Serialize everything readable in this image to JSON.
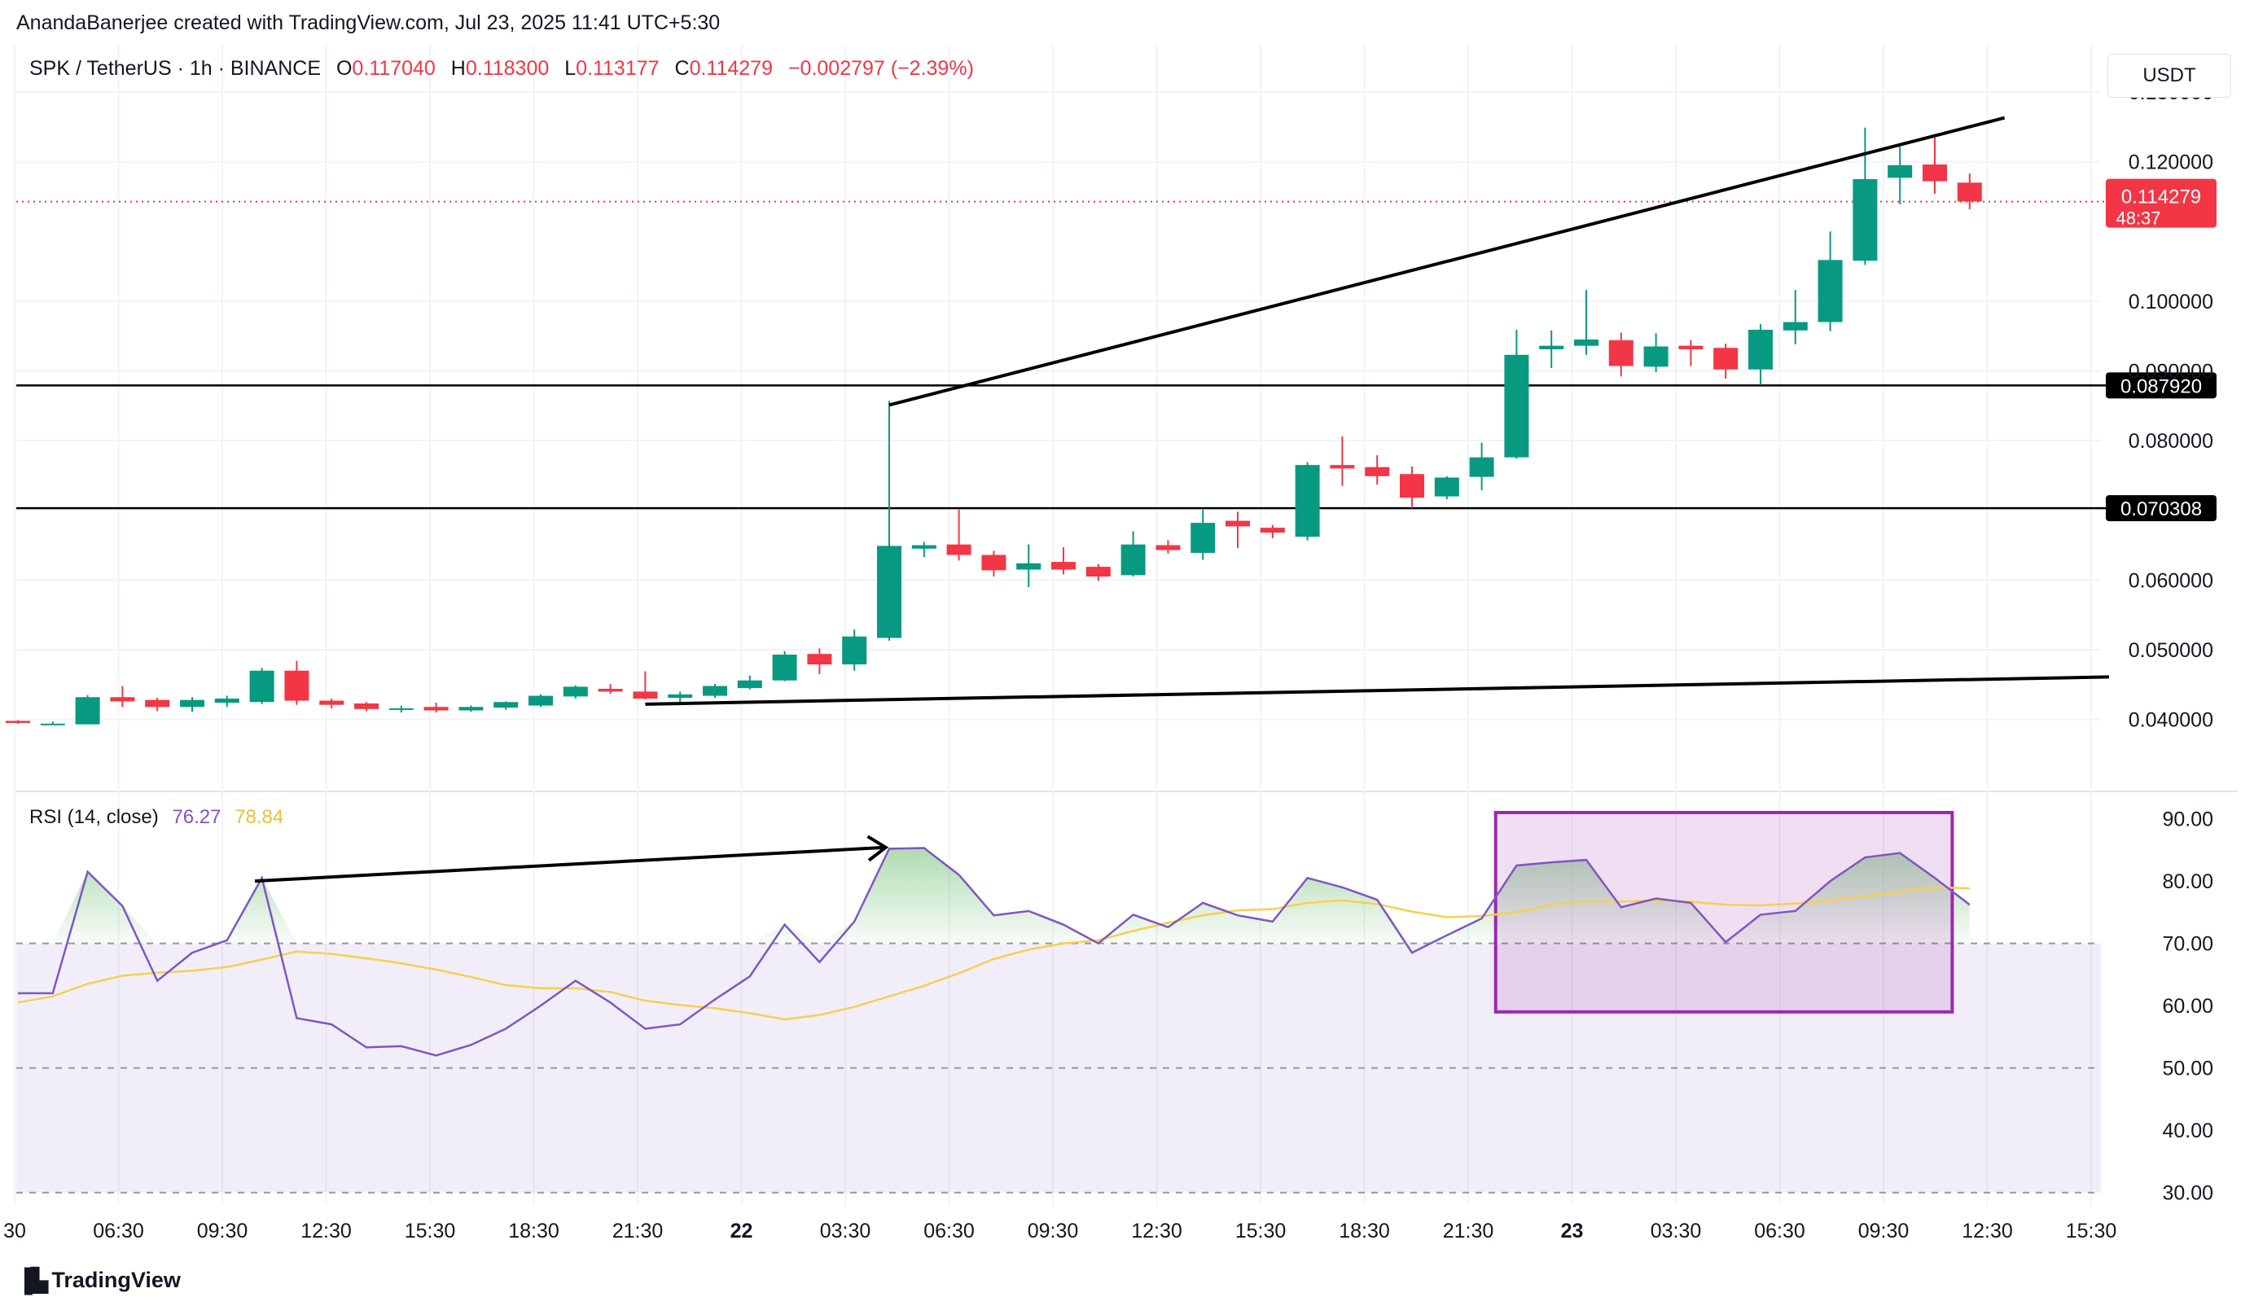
{
  "header": {
    "credit": "AnandaBanerjee created with TradingView.com, Jul 23, 2025 11:41 UTC+5:30",
    "symbol": "SPK / TetherUS · 1h · BINANCE",
    "open_label": "O",
    "open": "0.117040",
    "high_label": "H",
    "high": "0.118300",
    "low_label": "L",
    "low": "0.113177",
    "close_label": "C",
    "close": "0.114279",
    "change": "−0.002797 (−2.39%)"
  },
  "currency_button": "USDT",
  "brand": {
    "logo": "▐▙",
    "name": "TradingView"
  },
  "colors": {
    "up": "#089981",
    "down": "#f23645",
    "rsi": "#7e57c2",
    "rsi_ma": "#f7d04c",
    "box": "#9c27b0",
    "text": "#131722"
  },
  "chart_data": {
    "type": "candlestick",
    "timeframe": "1h",
    "price_axis": {
      "ylim": [
        0.0305,
        0.1321
      ],
      "ticks": [
        "0.130000",
        "0.120000",
        "0.100000",
        "0.090000",
        "0.080000",
        "0.060000",
        "0.050000",
        "0.040000"
      ]
    },
    "time_axis": {
      "labels": [
        "30",
        "06:30",
        "09:30",
        "12:30",
        "15:30",
        "18:30",
        "21:30",
        "22",
        "03:30",
        "06:30",
        "09:30",
        "12:30",
        "15:30",
        "18:30",
        "21:30",
        "23",
        "03:30",
        "06:30",
        "09:30",
        "12:30",
        "15:30"
      ]
    },
    "candles": [
      [
        0.0398,
        0.0399,
        0.0394,
        0.0395
      ],
      [
        0.0394,
        0.0397,
        0.0392,
        0.0394
      ],
      [
        0.0393,
        0.0435,
        0.0393,
        0.0432
      ],
      [
        0.0432,
        0.0448,
        0.0418,
        0.0426
      ],
      [
        0.0428,
        0.0431,
        0.0412,
        0.0418
      ],
      [
        0.0418,
        0.0432,
        0.0411,
        0.0428
      ],
      [
        0.0424,
        0.0434,
        0.0418,
        0.043
      ],
      [
        0.0425,
        0.0474,
        0.0422,
        0.047
      ],
      [
        0.047,
        0.0484,
        0.0421,
        0.0427
      ],
      [
        0.0427,
        0.043,
        0.0416,
        0.0421
      ],
      [
        0.0423,
        0.0425,
        0.0412,
        0.0415
      ],
      [
        0.0414,
        0.042,
        0.041,
        0.0416
      ],
      [
        0.0418,
        0.0424,
        0.041,
        0.0413
      ],
      [
        0.0413,
        0.042,
        0.0411,
        0.0418
      ],
      [
        0.0417,
        0.0426,
        0.0414,
        0.0425
      ],
      [
        0.042,
        0.0436,
        0.0418,
        0.0434
      ],
      [
        0.0433,
        0.0449,
        0.043,
        0.0447
      ],
      [
        0.0444,
        0.0451,
        0.0437,
        0.044
      ],
      [
        0.044,
        0.0469,
        0.0429,
        0.043
      ],
      [
        0.0431,
        0.044,
        0.0425,
        0.0436
      ],
      [
        0.0434,
        0.0451,
        0.0431,
        0.0448
      ],
      [
        0.0445,
        0.0463,
        0.0443,
        0.0456
      ],
      [
        0.0456,
        0.0498,
        0.0455,
        0.0493
      ],
      [
        0.0494,
        0.0502,
        0.0465,
        0.0479
      ],
      [
        0.0479,
        0.0529,
        0.047,
        0.0519
      ],
      [
        0.0517,
        0.0857,
        0.0513,
        0.0649
      ],
      [
        0.0645,
        0.0655,
        0.0633,
        0.065
      ],
      [
        0.0651,
        0.0701,
        0.0628,
        0.0636
      ],
      [
        0.0636,
        0.0642,
        0.0605,
        0.0614
      ],
      [
        0.0615,
        0.0651,
        0.059,
        0.0624
      ],
      [
        0.0626,
        0.0647,
        0.0608,
        0.0615
      ],
      [
        0.0619,
        0.0623,
        0.0599,
        0.0605
      ],
      [
        0.0607,
        0.067,
        0.0605,
        0.0651
      ],
      [
        0.065,
        0.0657,
        0.0638,
        0.0643
      ],
      [
        0.0639,
        0.0701,
        0.0629,
        0.0682
      ],
      [
        0.0685,
        0.0698,
        0.0646,
        0.0677
      ],
      [
        0.0675,
        0.0679,
        0.066,
        0.0668
      ],
      [
        0.0662,
        0.0769,
        0.0657,
        0.0765
      ],
      [
        0.0765,
        0.0806,
        0.0735,
        0.076
      ],
      [
        0.0762,
        0.0779,
        0.0737,
        0.0749
      ],
      [
        0.0752,
        0.0763,
        0.0703,
        0.0718
      ],
      [
        0.072,
        0.0749,
        0.0716,
        0.0747
      ],
      [
        0.0748,
        0.0797,
        0.0729,
        0.0776
      ],
      [
        0.0776,
        0.0959,
        0.0774,
        0.0923
      ],
      [
        0.0931,
        0.0958,
        0.0904,
        0.0936
      ],
      [
        0.0936,
        0.1016,
        0.0923,
        0.0945
      ],
      [
        0.0944,
        0.0955,
        0.0892,
        0.0907
      ],
      [
        0.0906,
        0.0954,
        0.0898,
        0.0935
      ],
      [
        0.0936,
        0.0944,
        0.0907,
        0.0931
      ],
      [
        0.0933,
        0.0939,
        0.0889,
        0.0902
      ],
      [
        0.0902,
        0.0967,
        0.088,
        0.0959
      ],
      [
        0.0958,
        0.1016,
        0.0938,
        0.097
      ],
      [
        0.097,
        0.11,
        0.0957,
        0.1059
      ],
      [
        0.1058,
        0.1249,
        0.1052,
        0.1175
      ],
      [
        0.1177,
        0.1222,
        0.1139,
        0.1195
      ],
      [
        0.1196,
        0.1235,
        0.1154,
        0.1172
      ],
      [
        0.117,
        0.1183,
        0.1132,
        0.1143
      ]
    ],
    "current_price": {
      "value": 0.114279,
      "label": "0.114279",
      "countdown": "48:37"
    },
    "levels": [
      {
        "value": 0.08792,
        "label": "0.087920"
      },
      {
        "value": 0.070308,
        "label": "0.070308"
      }
    ],
    "trendlines": [
      {
        "from": [
          25,
          0.0851
        ],
        "to": [
          57,
          0.1263
        ]
      },
      {
        "from": [
          18,
          0.0422
        ],
        "to": [
          60,
          0.0461
        ]
      }
    ],
    "rsi": {
      "title": "RSI (14, close)",
      "value": "76.27",
      "ma_value": "78.84",
      "axis_ticks": [
        "90.00",
        "80.00",
        "70.00",
        "60.00",
        "50.00",
        "40.00",
        "30.00"
      ],
      "ylim": [
        28,
        94
      ],
      "upper_band": 70,
      "middle_band": 50,
      "lower_band": 30,
      "values": [
        62,
        62,
        81.5,
        76,
        64,
        68.5,
        70.5,
        80.5,
        58,
        57,
        53.3,
        53.5,
        52,
        53.7,
        56.3,
        60,
        64,
        60.5,
        56.3,
        57,
        61,
        64.7,
        73,
        67,
        73.5,
        85.2,
        85.3,
        81,
        74.5,
        75.2,
        73,
        70,
        74.6,
        72.6,
        76.5,
        74.5,
        73.5,
        80.5,
        79,
        77,
        68.5,
        71.3,
        74,
        82.5,
        83,
        83.4,
        75.8,
        77.2,
        76.5,
        70.2,
        74.6,
        75.2,
        80,
        83.8,
        84.5,
        80.5,
        76.2
      ],
      "ma_values": [
        60.5,
        61.5,
        63.5,
        64.8,
        65.3,
        65.6,
        66.2,
        67.4,
        68.7,
        68.3,
        67.6,
        66.8,
        65.8,
        64.6,
        63.3,
        62.8,
        62.8,
        62.2,
        60.8,
        60.1,
        59.6,
        58.8,
        57.8,
        58.5,
        59.8,
        61.5,
        63.2,
        65.2,
        67.5,
        69.0,
        70.0,
        70.5,
        72.0,
        73.3,
        74.5,
        75.3,
        75.5,
        76.5,
        76.9,
        76.3,
        75.1,
        74.2,
        74.4,
        75.0,
        76.2,
        76.8,
        76.7,
        76.9,
        76.7,
        76.2,
        76.1,
        76.4,
        76.9,
        77.5,
        78.3,
        79.0,
        78.84
      ]
    },
    "annotations": {
      "rsi_arrow": {
        "from": [
          6.8,
          80.0
        ],
        "to": [
          24.9,
          85.4
        ]
      },
      "rsi_box": {
        "x": [
          42.4,
          55.5
        ],
        "y": [
          59,
          91
        ]
      }
    }
  }
}
